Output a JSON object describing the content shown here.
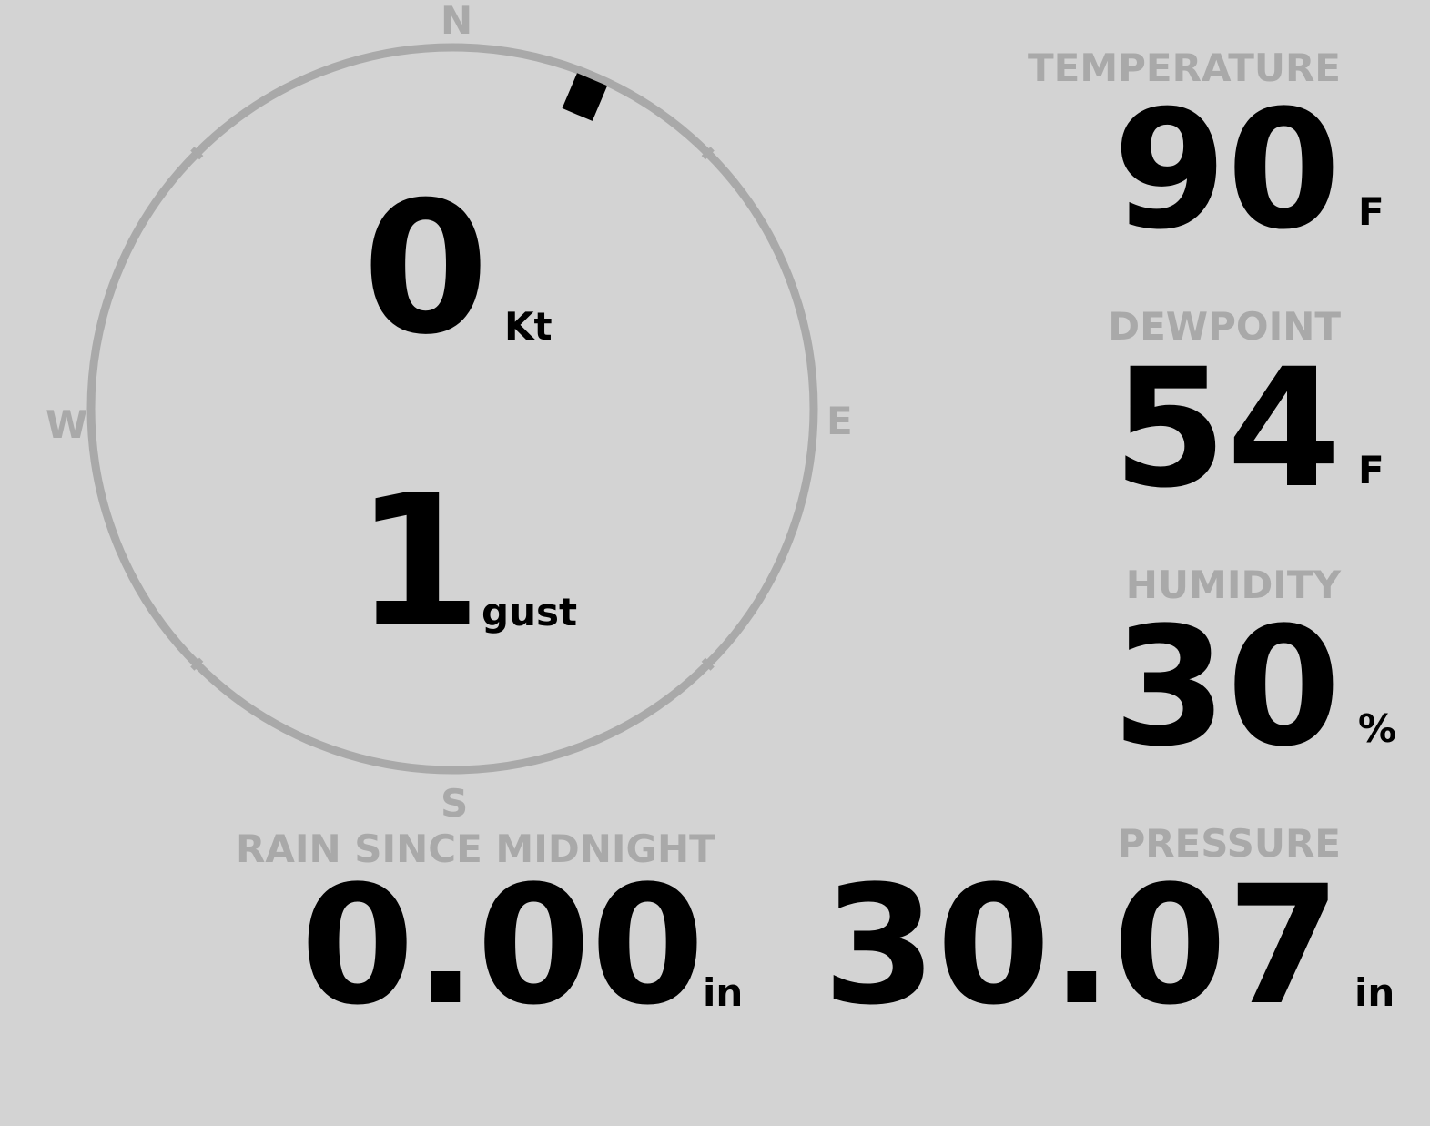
{
  "wind": {
    "compass": {
      "n": "N",
      "e": "E",
      "s": "S",
      "w": "W"
    },
    "speed": "0",
    "speed_unit": "Kt",
    "gust": "1",
    "gust_unit": "gust",
    "direction_deg": 23,
    "colors": {
      "ring": "#a9a9a9",
      "indicator": "#000000"
    }
  },
  "temperature": {
    "label": "TEMPERATURE",
    "value": "90",
    "unit": "F"
  },
  "dewpoint": {
    "label": "DEWPOINT",
    "value": "54",
    "unit": "F"
  },
  "humidity": {
    "label": "HUMIDITY",
    "value": "30",
    "unit": "%"
  },
  "pressure": {
    "label": "PRESSURE",
    "value": "30.07",
    "unit": "in"
  },
  "rain": {
    "label": "RAIN SINCE MIDNIGHT",
    "value": "0.00",
    "unit": "in"
  },
  "colors": {
    "background": "#d3d3d3",
    "label": "#a9a9a9",
    "value": "#000000"
  }
}
